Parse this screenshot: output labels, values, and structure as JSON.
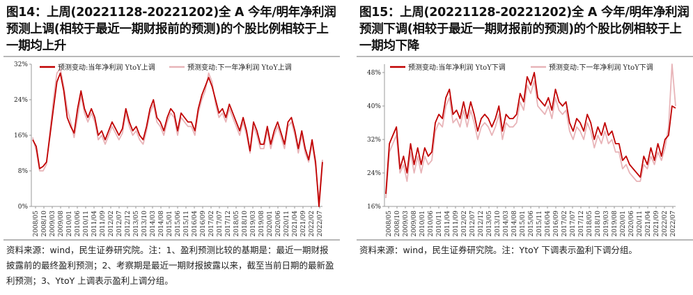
{
  "panels": [
    {
      "title": "图14：上周(20221128-20221202)全 A 今年/明年净利润预测上调(相较于最近一期财报前的预测)的个股比例相较于上一期均上升",
      "note": "资料来源：wind，民生证券研究院。注：1、盈利预测比较的基期是：最近一期财报披露前的最终盈利预测；2、考察期是最近一期财报披露以来，截至当前日期的最新盈利预测；3、YtoY 上调表示盈利上调分组。"
    },
    {
      "title": "图15：上周(20221128-20221202)全 A 今年/明年净利润预测下调(相较于最近一期财报前的预测)的个股比例相较于上一期均下降",
      "note": "资料来源：wind，民生证券研究院。注：YtoY 下调表示盈利下调分组。"
    }
  ],
  "chart_data": [
    {
      "type": "line",
      "x_ticks": [
        "2008/05",
        "2008/10",
        "2009/03",
        "2009/08",
        "2010/01",
        "2010/06",
        "2010/11",
        "2011/04",
        "2011/09",
        "2012/02",
        "2012/07",
        "2012/12",
        "2013/05",
        "2013/10",
        "2014/03",
        "2014/08",
        "2015/01",
        "2015/06",
        "2015/11",
        "2016/04",
        "2016/09",
        "2017/02",
        "2017/07",
        "2017/12",
        "2018/05",
        "2018/10",
        "2019/03",
        "2019/08",
        "2020/01",
        "2020/06",
        "2020/11",
        "2021/04",
        "2021/09",
        "2022/02",
        "2022/07"
      ],
      "y_ticks": [
        "0%",
        "8%",
        "16%",
        "24%",
        "32%"
      ],
      "ylim": [
        0,
        32
      ],
      "series": [
        {
          "name": "预测变动:当年净利润 YtoY上调",
          "color": "#c00000",
          "values": [
            15,
            13.5,
            8.5,
            9,
            10,
            16,
            22,
            28,
            30,
            26,
            20,
            18,
            16.5,
            22,
            26,
            22,
            20,
            22,
            20,
            16,
            17,
            15,
            17,
            19,
            17.5,
            16,
            17.5,
            22,
            19,
            17,
            18,
            16,
            15,
            18,
            22,
            24,
            20,
            19,
            17,
            20,
            22,
            21,
            17,
            21,
            20,
            19,
            19,
            17,
            22,
            25,
            27,
            29,
            27,
            24,
            21,
            22,
            20,
            23,
            21,
            19,
            17,
            20,
            17,
            12.5,
            19,
            17,
            14,
            14,
            18,
            14,
            17,
            19,
            16.5,
            14,
            19,
            20,
            17,
            13,
            17,
            13,
            10.5,
            15,
            10,
            0,
            10
          ]
        },
        {
          "name": "预测变动:下一年净利润 YtoY上调",
          "color": "#e8b4b8",
          "values": [
            15.5,
            12.5,
            8,
            8,
            9.5,
            17,
            24,
            30,
            31,
            27,
            22,
            19,
            15.5,
            20,
            25,
            21,
            19,
            21,
            19,
            15,
            16,
            14,
            16,
            18,
            16.5,
            15,
            16.5,
            21,
            18,
            16,
            17,
            15,
            14,
            17,
            21,
            23,
            19,
            18,
            16,
            19,
            21,
            20,
            16,
            20,
            19,
            18,
            18,
            16,
            21,
            24,
            26,
            30,
            28,
            23,
            20,
            21,
            19,
            22,
            20,
            18,
            16,
            19,
            16,
            12,
            18,
            16,
            13,
            13,
            17,
            13,
            16,
            18,
            15.5,
            13,
            18,
            19,
            16,
            12,
            16,
            12,
            10,
            14,
            9,
            1.5,
            10.5
          ]
        }
      ]
    },
    {
      "type": "line",
      "x_ticks": [
        "2008/05",
        "2008/10",
        "2009/03",
        "2009/08",
        "2010/01",
        "2010/06",
        "2010/11",
        "2011/04",
        "2011/09",
        "2012/02",
        "2012/07",
        "2012/12",
        "2013/05",
        "2013/10",
        "2014/03",
        "2014/08",
        "2015/01",
        "2015/06",
        "2015/11",
        "2016/04",
        "2016/09",
        "2017/02",
        "2017/07",
        "2017/12",
        "2018/05",
        "2018/10",
        "2019/03",
        "2019/08",
        "2020/01",
        "2020/06",
        "2020/11",
        "2021/04",
        "2021/09",
        "2022/02",
        "2022/07"
      ],
      "y_ticks": [
        "16%",
        "24%",
        "32%",
        "40%",
        "48%"
      ],
      "ylim": [
        16,
        50
      ],
      "series": [
        {
          "name": "预测变动:当年净利润 YtoY下调",
          "color": "#c00000",
          "values": [
            19,
            31,
            33,
            35,
            25,
            28,
            24,
            31,
            26,
            30,
            26,
            30,
            28,
            29,
            36,
            38,
            37,
            42,
            44,
            38,
            39,
            37,
            41,
            37,
            41,
            38,
            34,
            37,
            38,
            37,
            35,
            37,
            40,
            34,
            38,
            37,
            37,
            38,
            43,
            41,
            47,
            45,
            48,
            42,
            41,
            40,
            42,
            39,
            44,
            41,
            40,
            41,
            36,
            34,
            37,
            36,
            34,
            38,
            36,
            32,
            35,
            33,
            36,
            33,
            34,
            31,
            31,
            27,
            28,
            26,
            25,
            24,
            23,
            28,
            26,
            30,
            27,
            31,
            28,
            32,
            33,
            40,
            39.5
          ]
        },
        {
          "name": "预测变动:下一年净利润 YtoY下调",
          "color": "#e8b4b8",
          "values": [
            18,
            29,
            31,
            33,
            24,
            26,
            22,
            29,
            24,
            28,
            24,
            28,
            26,
            27,
            34,
            36,
            35,
            40,
            42,
            36,
            37,
            35,
            39,
            35,
            39,
            36,
            32,
            35,
            36,
            35,
            33,
            35,
            38,
            32,
            36,
            35,
            35,
            36,
            41,
            39,
            45,
            43,
            46,
            40,
            39,
            38,
            40,
            37,
            42,
            39,
            38,
            39,
            34,
            32,
            35,
            34,
            32,
            36,
            34,
            30,
            33,
            31,
            34,
            31,
            32,
            29,
            29,
            25,
            26,
            24,
            23,
            22,
            22,
            26,
            25,
            28,
            26,
            29,
            27,
            30,
            35,
            50,
            40
          ]
        }
      ]
    }
  ]
}
